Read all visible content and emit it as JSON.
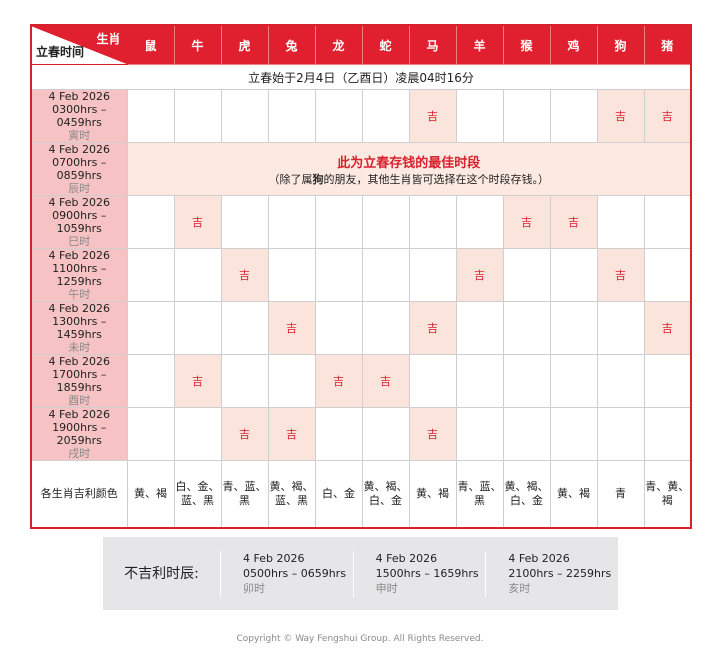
{
  "header": {
    "zodiac_label": "生肖",
    "time_label": "立春时间",
    "animals": [
      "鼠",
      "牛",
      "虎",
      "兔",
      "龙",
      "蛇",
      "马",
      "羊",
      "猴",
      "鸡",
      "狗",
      "猪"
    ]
  },
  "intro": "立春始于2月4日（乙酉日）凌晨04时16分",
  "ji": "吉",
  "rows": [
    {
      "date": "4 Feb 2026",
      "time": "0300hrs – 0459hrs",
      "branch": "寅时",
      "ji": [
        6,
        10,
        11
      ]
    },
    {
      "date": "4 Feb 2026",
      "time": "0700hrs – 0859hrs",
      "branch": "辰时",
      "best": true,
      "best_title": "此为立春存钱的最佳时段",
      "best_note_pre": "（除了属",
      "best_note_bold": "狗",
      "best_note_post": "的朋友，其他生肖皆可选择在这个时段存钱。）"
    },
    {
      "date": "4 Feb 2026",
      "time": "0900hrs – 1059hrs",
      "branch": "巳时",
      "ji": [
        1,
        8,
        9
      ]
    },
    {
      "date": "4 Feb 2026",
      "time": "1100hrs – 1259hrs",
      "branch": "午时",
      "ji": [
        2,
        7,
        10
      ]
    },
    {
      "date": "4 Feb 2026",
      "time": "1300hrs – 1459hrs",
      "branch": "未时",
      "ji": [
        3,
        6,
        11
      ]
    },
    {
      "date": "4 Feb 2026",
      "time": "1700hrs – 1859hrs",
      "branch": "酉时",
      "ji": [
        1,
        4,
        5
      ]
    },
    {
      "date": "4 Feb 2026",
      "time": "1900hrs – 2059hrs",
      "branch": "戌时",
      "ji": [
        2,
        3,
        6
      ]
    }
  ],
  "colors": {
    "label": "各生肖吉利颜色",
    "values": [
      "黄、褐",
      "白、金、蓝、黑",
      "青、蓝、黑",
      "黄、褐、蓝、黑",
      "白、金",
      "黄、褐、白、金",
      "黄、褐",
      "青、蓝、黑",
      "黄、褐、白、金",
      "黄、褐",
      "青",
      "青、黄、褐"
    ]
  },
  "unlucky": {
    "label": "不吉利时辰:",
    "slots": [
      {
        "date": "4 Feb 2026",
        "time": "0500hrs – 0659hrs",
        "branch": "卯时"
      },
      {
        "date": "4 Feb 2026",
        "time": "1500hrs – 1659hrs",
        "branch": "申时"
      },
      {
        "date": "4 Feb 2026",
        "time": "2100hrs – 2259hrs",
        "branch": "亥时"
      }
    ]
  },
  "copyright": "Copyright © Way Fengshui Group. All Rights Reserved.",
  "theme": {
    "accent": "#e0202e",
    "label_bg": "#f6c2c3",
    "ji_bg": "#fbe4dc"
  }
}
